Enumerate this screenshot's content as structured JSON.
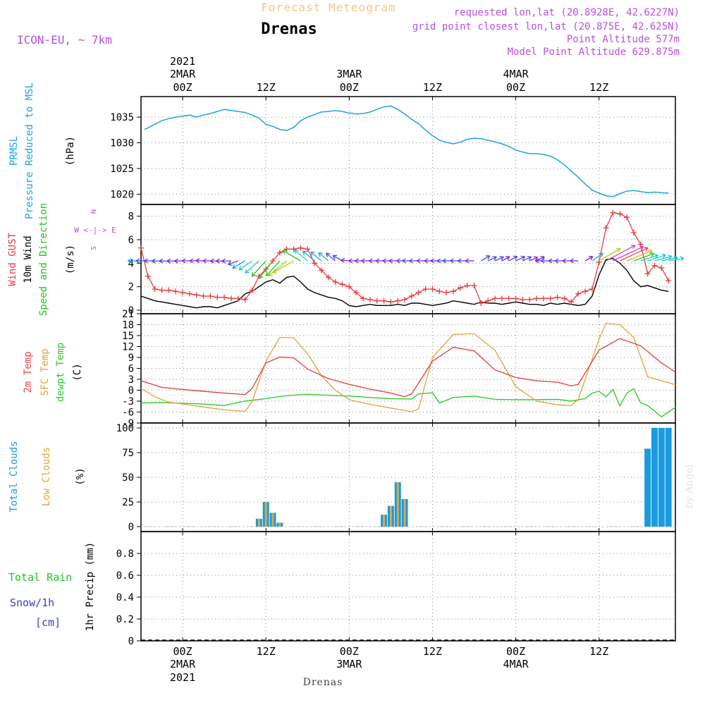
{
  "header": {
    "subtitle": "Forecast Meteogram",
    "title": "Drenas",
    "model": "ICON-EU, ~ 7km",
    "requested": "requested lon,lat (20.8928E, 42.6227N)",
    "grid_point": "grid point closest lon,lat (20.875E, 42.625N)",
    "point_altitude": "Point Altitude 577m",
    "model_altitude": "Model Point Altitude 629.875m"
  },
  "footer": {
    "station": "Drenas",
    "watermark": "by Angel"
  },
  "colors": {
    "pressure": "#1fa2e6",
    "gust": "#e83c3c",
    "wind": "#000000",
    "direction": "#22c422",
    "t2m": "#e34848",
    "sfc": "#e2a33a",
    "dewpt": "#2ecc2e",
    "total_clouds": "#1a9be0",
    "low_clouds": "#e0a63c",
    "rain": "#22c422",
    "snow": "#3b3bd6",
    "header_orange": "#f5c58c",
    "purple": "#b84fe0"
  },
  "time_axis": {
    "year": "2021",
    "top_ticks": [
      {
        "t": 0,
        "label": "00Z",
        "date": "2MAR"
      },
      {
        "t": 12,
        "label": "12Z",
        "date": ""
      },
      {
        "t": 24,
        "label": "00Z",
        "date": "3MAR"
      },
      {
        "t": 36,
        "label": "12Z",
        "date": ""
      },
      {
        "t": 48,
        "label": "00Z",
        "date": "4MAR"
      },
      {
        "t": 60,
        "label": "12Z",
        "date": ""
      }
    ],
    "bottom_ticks": [
      {
        "t": 0,
        "label": "00Z",
        "date": "2MAR"
      },
      {
        "t": 12,
        "label": "12Z",
        "date": ""
      },
      {
        "t": 24,
        "label": "00Z",
        "date": "3MAR"
      },
      {
        "t": 36,
        "label": "12Z",
        "date": ""
      },
      {
        "t": 48,
        "label": "00Z",
        "date": "4MAR"
      },
      {
        "t": 60,
        "label": "12Z",
        "date": ""
      }
    ],
    "range_hours": [
      -6,
      71
    ]
  },
  "chart_data": [
    {
      "type": "line",
      "ylabel_lines": [
        "PRMSL",
        "Pressure Reduced to MSL"
      ],
      "unit": "(hPa)",
      "ylim": [
        1018,
        1039
      ],
      "yticks": [
        1020,
        1025,
        1030,
        1035
      ],
      "series": [
        {
          "x": [
            -5.5,
            -5,
            -4,
            -3,
            -2,
            -1,
            0,
            1,
            2,
            3,
            4,
            5,
            6,
            7,
            8,
            9,
            10,
            11,
            12,
            13,
            14,
            15,
            16,
            17,
            18,
            19,
            20,
            21,
            22,
            23,
            24,
            25,
            26,
            27,
            28,
            29,
            30,
            31,
            32,
            33,
            34,
            35,
            36,
            37,
            38,
            39,
            40,
            41,
            42,
            43,
            44,
            45,
            46,
            47,
            48,
            49,
            50,
            51,
            52,
            53,
            54,
            55,
            56,
            57,
            58,
            59,
            60,
            61,
            62,
            63,
            64,
            65,
            66,
            67,
            68,
            69,
            70
          ],
          "y": [
            1032.6,
            1032.9,
            1033.6,
            1034.3,
            1034.7,
            1035.0,
            1035.2,
            1035.4,
            1035.0,
            1035.4,
            1035.7,
            1036.1,
            1036.5,
            1036.3,
            1036.1,
            1035.9,
            1035.4,
            1034.8,
            1033.6,
            1033.2,
            1032.6,
            1032.4,
            1033.0,
            1034.3,
            1035.0,
            1035.5,
            1036.0,
            1036.1,
            1036.3,
            1036.1,
            1035.8,
            1035.6,
            1035.7,
            1036.0,
            1036.5,
            1037.0,
            1037.2,
            1036.5,
            1035.6,
            1034.6,
            1033.7,
            1032.5,
            1031.4,
            1030.5,
            1030.1,
            1029.8,
            1030.1,
            1030.7,
            1030.9,
            1030.8,
            1030.5,
            1030.2,
            1029.8,
            1029.3,
            1028.6,
            1028.2,
            1027.9,
            1027.9,
            1027.7,
            1027.4,
            1026.7,
            1025.7,
            1024.5,
            1023.3,
            1022.0,
            1020.8,
            1020.2,
            1019.7,
            1019.5,
            1020.1,
            1020.6,
            1020.7,
            1020.5,
            1020.3,
            1020.4,
            1020.3,
            1020.2
          ]
        }
      ]
    },
    {
      "type": "line",
      "ylabel_lines": [
        "Wind GUST",
        "10m Wind",
        "Speed and Direction"
      ],
      "unit": "(m/s)",
      "compass": [
        "N",
        "W <-|-> E",
        "S"
      ],
      "ylim": [
        -0.3,
        9.0
      ],
      "yticks": [
        0,
        2,
        4,
        6,
        8
      ],
      "series": [
        {
          "name": "gust",
          "x": [
            -6,
            -5,
            -4,
            -3,
            -2,
            -1,
            0,
            1,
            2,
            3,
            4,
            5,
            6,
            7,
            8,
            9,
            10,
            11,
            12,
            13,
            14,
            15,
            16,
            17,
            18,
            19,
            20,
            21,
            22,
            23,
            24,
            25,
            26,
            27,
            28,
            29,
            30,
            31,
            32,
            33,
            34,
            35,
            36,
            37,
            38,
            39,
            40,
            41,
            42,
            43,
            44,
            45,
            46,
            47,
            48,
            49,
            50,
            51,
            52,
            53,
            54,
            55,
            56,
            57,
            58,
            59,
            60,
            61,
            62,
            63,
            64,
            65,
            66,
            67,
            68,
            69,
            70
          ],
          "y": [
            5.3,
            2.9,
            1.8,
            1.7,
            1.7,
            1.6,
            1.5,
            1.4,
            1.3,
            1.2,
            1.2,
            1.1,
            1.1,
            1.0,
            1.0,
            0.9,
            1.7,
            2.9,
            3.5,
            4.2,
            4.9,
            5.2,
            5.2,
            5.3,
            5.2,
            4.0,
            3.4,
            2.8,
            2.4,
            2.2,
            2.0,
            1.5,
            1.0,
            0.9,
            0.8,
            0.8,
            0.7,
            0.8,
            0.9,
            1.2,
            1.5,
            1.8,
            1.8,
            1.6,
            1.5,
            1.6,
            1.9,
            2.1,
            2.1,
            0.6,
            0.8,
            1.0,
            1.0,
            1.0,
            1.0,
            0.9,
            0.9,
            1.0,
            1.0,
            1.0,
            1.1,
            1.0,
            0.7,
            1.4,
            1.6,
            1.8,
            4.1,
            7.0,
            8.3,
            8.2,
            7.9,
            6.6,
            5.6,
            3.1,
            3.8,
            3.6,
            2.5
          ]
        },
        {
          "name": "wind",
          "x": [
            -6,
            -5,
            -4,
            -3,
            -2,
            -1,
            0,
            1,
            2,
            3,
            4,
            5,
            6,
            7,
            8,
            9,
            10,
            11,
            12,
            13,
            14,
            15,
            16,
            17,
            18,
            19,
            20,
            21,
            22,
            23,
            24,
            25,
            26,
            27,
            28,
            29,
            30,
            31,
            32,
            33,
            34,
            35,
            36,
            37,
            38,
            39,
            40,
            41,
            42,
            43,
            44,
            45,
            46,
            47,
            48,
            49,
            50,
            51,
            52,
            53,
            54,
            55,
            56,
            57,
            58,
            59,
            60,
            61,
            62,
            63,
            64,
            65,
            66,
            67,
            68,
            69,
            70
          ],
          "y": [
            1.2,
            1.0,
            0.8,
            0.7,
            0.6,
            0.5,
            0.4,
            0.3,
            0.2,
            0.3,
            0.3,
            0.2,
            0.4,
            0.6,
            0.8,
            1.4,
            1.6,
            2.0,
            2.4,
            2.6,
            2.3,
            2.8,
            2.9,
            2.4,
            1.8,
            1.5,
            1.3,
            1.1,
            1.0,
            0.8,
            0.4,
            0.3,
            0.4,
            0.5,
            0.4,
            0.4,
            0.4,
            0.5,
            0.4,
            0.6,
            0.6,
            0.5,
            0.4,
            0.5,
            0.6,
            0.8,
            0.7,
            0.6,
            0.5,
            0.7,
            0.6,
            0.6,
            0.5,
            0.6,
            0.7,
            0.6,
            0.5,
            0.5,
            0.4,
            0.6,
            0.5,
            0.6,
            0.5,
            0.4,
            0.5,
            1.2,
            3.0,
            4.3,
            4.4,
            4.0,
            3.4,
            2.5,
            2.0,
            2.1,
            1.9,
            1.7,
            1.6
          ]
        },
        {
          "name": "direction_to_deg",
          "x": [
            -6,
            -5,
            -4,
            -3,
            -2,
            -1,
            0,
            1,
            2,
            3,
            4,
            5,
            6,
            7,
            8,
            9,
            10,
            11,
            12,
            13,
            14,
            15,
            16,
            17,
            18,
            19,
            20,
            21,
            22,
            23,
            24,
            25,
            26,
            27,
            28,
            29,
            30,
            31,
            32,
            33,
            34,
            35,
            36,
            37,
            38,
            39,
            40,
            41,
            42,
            43,
            44,
            45,
            46,
            47,
            48,
            49,
            50,
            51,
            52,
            53,
            54,
            55,
            56,
            57,
            58,
            59,
            60,
            61,
            62,
            63,
            64,
            65,
            66,
            67,
            68,
            69,
            70
          ],
          "y": [
            180,
            180,
            180,
            182,
            182,
            182,
            182,
            180,
            180,
            178,
            180,
            182,
            182,
            182,
            200,
            210,
            215,
            222,
            228,
            232,
            228,
            220,
            210,
            150,
            140,
            140,
            140,
            140,
            140,
            150,
            175,
            180,
            180,
            180,
            180,
            180,
            180,
            180,
            180,
            180,
            180,
            180,
            180,
            180,
            180,
            180,
            180,
            180,
            180,
            30,
            25,
            25,
            28,
            28,
            25,
            25,
            25,
            28,
            180,
            180,
            180,
            180,
            180,
            180,
            30,
            35,
            30,
            28,
            25,
            25,
            22,
            20,
            18,
            18,
            15,
            12,
            10
          ]
        }
      ]
    },
    {
      "type": "line",
      "ylabel_lines": [
        "2m Temp",
        "SFC Temp",
        "dewpt Temp"
      ],
      "unit": "(C)",
      "ylim": [
        -9,
        21
      ],
      "yticks": [
        -9,
        -6,
        -3,
        0,
        3,
        6,
        9,
        12,
        15,
        18,
        21
      ],
      "series": [
        {
          "name": "2m",
          "x": [
            -6,
            -3,
            0,
            3,
            6,
            9,
            10,
            12,
            14,
            16,
            18,
            21,
            24,
            27,
            30,
            32,
            33,
            36,
            39,
            42,
            45,
            48,
            51,
            54,
            56,
            57,
            60,
            63,
            66,
            69,
            71
          ],
          "y": [
            2.6,
            0.8,
            0.2,
            -0.3,
            -0.8,
            -1.2,
            0.5,
            7.5,
            9.1,
            8.9,
            5.8,
            3.2,
            1.6,
            0.3,
            -0.8,
            -1.8,
            -1.0,
            8.0,
            11.8,
            10.8,
            5.6,
            3.5,
            2.6,
            2.2,
            1.2,
            1.6,
            11.0,
            14.2,
            12.2,
            7.5,
            5.0
          ]
        },
        {
          "name": "sfc",
          "x": [
            -6,
            -4,
            -2,
            0,
            3,
            6,
            9,
            10,
            12,
            14,
            16,
            18,
            20,
            22,
            24,
            27,
            30,
            33,
            34,
            36,
            39,
            42,
            45,
            48,
            51,
            54,
            56,
            57,
            60,
            61,
            63,
            65,
            67,
            71
          ],
          "y": [
            0.5,
            -1.8,
            -3.3,
            -3.8,
            -4.6,
            -5.4,
            -5.8,
            -3.2,
            8.0,
            14.5,
            14.4,
            10.0,
            4.0,
            0.0,
            -2.6,
            -3.9,
            -4.9,
            -5.9,
            -5.1,
            9.0,
            15.3,
            15.5,
            11.0,
            1.0,
            -3.0,
            -4.0,
            -4.2,
            -2.5,
            14.0,
            18.4,
            18.0,
            14.5,
            3.7,
            1.5
          ]
        },
        {
          "name": "dewpt",
          "x": [
            -6,
            -3,
            0,
            3,
            6,
            9,
            12,
            14,
            15,
            18,
            21,
            24,
            27,
            30,
            33,
            34,
            36,
            37,
            39,
            42,
            45,
            48,
            51,
            54,
            56,
            57,
            58,
            59,
            60,
            61,
            62,
            63,
            64,
            65,
            66,
            67,
            69,
            71
          ],
          "y": [
            -3.5,
            -3.4,
            -3.6,
            -3.8,
            -4.2,
            -3.0,
            -2.3,
            -1.7,
            -1.5,
            -1.1,
            -1.4,
            -1.6,
            -2.0,
            -2.3,
            -2.4,
            -1.0,
            -0.7,
            -3.5,
            -2.0,
            -1.6,
            -2.5,
            -2.6,
            -2.6,
            -2.5,
            -3.0,
            -2.6,
            -2.3,
            -0.8,
            -0.3,
            -1.8,
            0.2,
            -4.3,
            -0.8,
            0.4,
            -3.5,
            -4.2,
            -7.3,
            -4.7
          ]
        }
      ]
    },
    {
      "type": "bar",
      "ylabel_lines": [
        "Total Clouds",
        "Low Clouds"
      ],
      "unit": "(%)",
      "ylim": [
        -5,
        105
      ],
      "yticks": [
        0,
        25,
        50,
        75,
        100
      ],
      "series": [
        {
          "name": "total",
          "x": [
            11,
            12,
            13,
            14,
            29,
            30,
            31,
            32,
            67,
            68,
            69,
            70
          ],
          "y": [
            8,
            25,
            14,
            4,
            12,
            21,
            45,
            28,
            79,
            100,
            100,
            100
          ]
        },
        {
          "name": "low",
          "x": [
            11,
            12,
            13,
            14,
            29,
            30,
            31,
            32
          ],
          "y": [
            8,
            25,
            14,
            4,
            12,
            21,
            45,
            28
          ]
        }
      ]
    },
    {
      "type": "bar",
      "ylabel_lines": [
        "Total Rain",
        "Snow/1h",
        "[cm]"
      ],
      "ylabel_right": "1hr Precip (mm)",
      "ylim": [
        0,
        1.0
      ],
      "yticks": [
        0,
        0.2,
        0.4,
        0.6,
        0.8
      ],
      "series": [
        {
          "name": "rain",
          "x": [],
          "y": []
        },
        {
          "name": "snow",
          "x": [],
          "y": []
        }
      ]
    }
  ]
}
